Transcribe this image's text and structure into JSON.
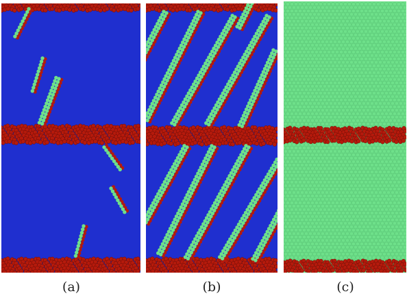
{
  "figure": {
    "panels": [
      {
        "caption": "(a)"
      },
      {
        "caption": "(b)"
      },
      {
        "caption": "(c)"
      }
    ],
    "colors": {
      "blue": "#1f2fcf",
      "red": "#b51a0c",
      "green": "#6ee08a"
    }
  }
}
